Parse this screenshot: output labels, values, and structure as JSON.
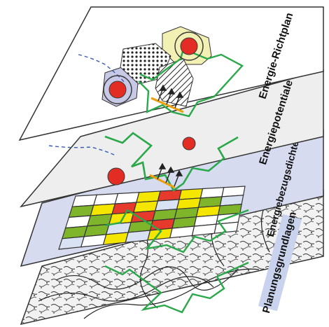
{
  "layers": [
    {
      "id": "energie-richtplan",
      "label": "Energie-Richtplan",
      "fill": "#ffffff"
    },
    {
      "id": "energiepotentiale",
      "label": "Energiepotentiale",
      "fill": "#eeeeee"
    },
    {
      "id": "energiebezugsdichte",
      "label": "Energiebezugsdichte",
      "fill": "#d7dbf0"
    },
    {
      "id": "planungsgrundlagen",
      "label": "Planungsgrundlagen",
      "fill": "#ffffff"
    }
  ],
  "grid_colors": {
    "yellow": "#f5e600",
    "red": "#e53a2c",
    "green": "#7fb52a",
    "white": "#ffffff",
    "lightblue": "#d8e2f2"
  },
  "colors": {
    "boundary": "#2aa84a",
    "dot": "#e32d24",
    "dot_ring": "#3b3b3b",
    "dashed_path": "#3a5cb0",
    "arrow_line": "#e9a112",
    "zone_yellow": "#f3f0b4",
    "zone_blue": "#c7c9e6"
  }
}
